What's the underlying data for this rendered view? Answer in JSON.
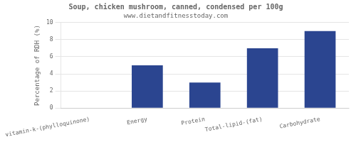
{
  "chart_data": {
    "type": "bar",
    "title": "Soup, chicken mushroom, canned, condensed per 100g",
    "subtitle": "www.dietandfitnesstoday.com",
    "categories": [
      "vitamin-k-(phylloquinone)",
      "Energy",
      "Protein",
      "Total-lipid-(fat)",
      "Carbohydrate"
    ],
    "values": [
      0,
      5,
      3,
      7,
      9
    ],
    "color": "#2b4590",
    "ylabel": "Percentage of RDH (%)",
    "ylim": [
      0,
      10
    ],
    "yticks": [
      0,
      2,
      4,
      6,
      8,
      10
    ],
    "grid": true
  }
}
